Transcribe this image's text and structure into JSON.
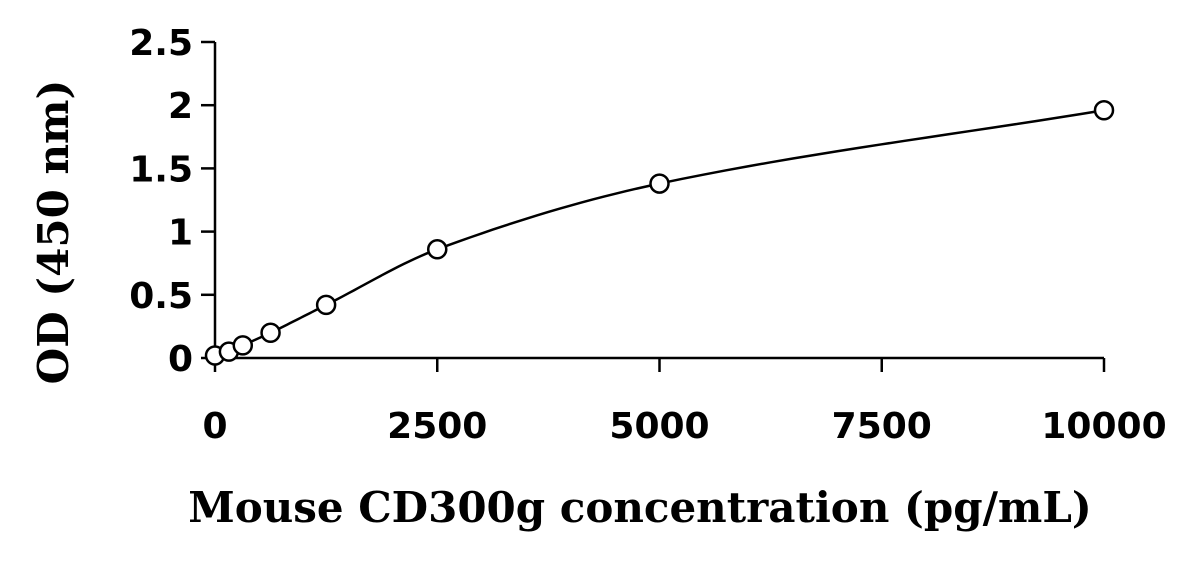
{
  "chart_data": {
    "type": "scatter",
    "xlabel": "Mouse CD300g concentration (pg/mL)",
    "ylabel": "OD (450 nm)",
    "xlim": [
      0,
      10000
    ],
    "ylim": [
      0,
      2.5
    ],
    "x_ticks": [
      0,
      2500,
      5000,
      7500,
      10000
    ],
    "x_tick_labels": [
      "0",
      "2500",
      "5000",
      "7500",
      "10000"
    ],
    "y_ticks": [
      0,
      0.5,
      1,
      1.5,
      2,
      2.5
    ],
    "y_tick_labels": [
      "0",
      "0.5",
      "1",
      "1.5",
      "2",
      "2.5"
    ],
    "grid": false,
    "legend": "none",
    "series": [
      {
        "marker": "open-circle",
        "fit_line": "smooth",
        "x": [
          0,
          156.25,
          312.5,
          625,
          1250,
          2500,
          5000,
          10000
        ],
        "y": [
          0.02,
          0.05,
          0.1,
          0.2,
          0.42,
          0.86,
          1.38,
          1.96
        ]
      }
    ],
    "colors": {
      "axis": "#000000",
      "marker_stroke": "#000000",
      "marker_fill": "#ffffff",
      "line": "#000000"
    }
  }
}
